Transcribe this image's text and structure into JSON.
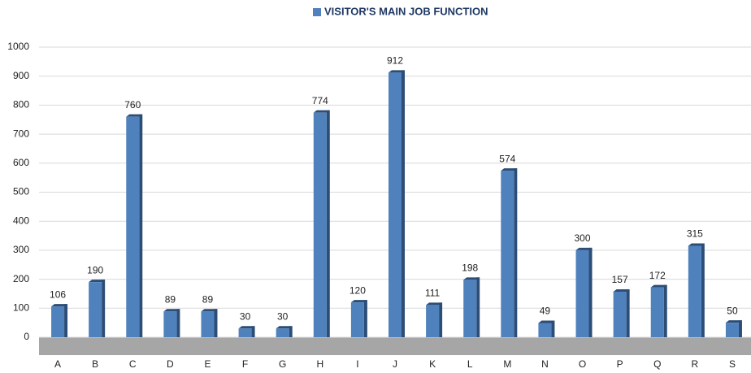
{
  "chart_data": {
    "type": "bar",
    "categories": [
      "A",
      "B",
      "C",
      "D",
      "E",
      "F",
      "G",
      "H",
      "I",
      "J",
      "K",
      "L",
      "M",
      "N",
      "O",
      "P",
      "Q",
      "R",
      "S"
    ],
    "series": [
      {
        "name": "VISITOR'S MAIN JOB FUNCTION",
        "color": "#4f81bd",
        "values": [
          106,
          190,
          760,
          89,
          89,
          30,
          30,
          774,
          120,
          912,
          111,
          198,
          574,
          49,
          300,
          157,
          172,
          315,
          50
        ]
      }
    ],
    "ylim": [
      0,
      1000
    ],
    "yticks": [
      0,
      100,
      200,
      300,
      400,
      500,
      600,
      700,
      800,
      900,
      1000
    ],
    "grid": true,
    "legend": "top",
    "data_labels": true
  }
}
